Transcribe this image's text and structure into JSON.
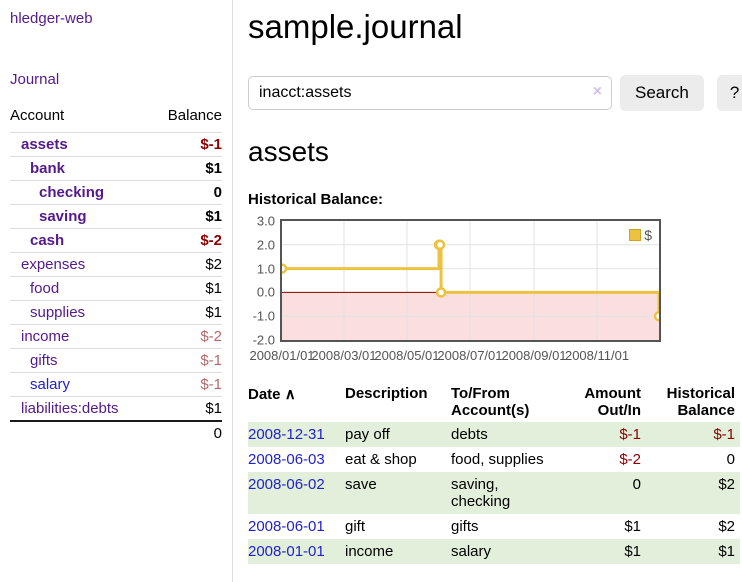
{
  "app": {
    "title": "hledger-web"
  },
  "sidebar": {
    "journal_link": "Journal",
    "accounts": {
      "account_header": "Account",
      "balance_header": "Balance",
      "rows": [
        {
          "name": "assets",
          "balance": "$-1",
          "level": 1,
          "bold": true,
          "neg": "strong",
          "link": "purple"
        },
        {
          "name": "bank",
          "balance": "$1",
          "level": 2,
          "bold": true,
          "neg": "none",
          "link": "purple"
        },
        {
          "name": "checking",
          "balance": "0",
          "level": 3,
          "bold": true,
          "neg": "none",
          "link": "purple"
        },
        {
          "name": "saving",
          "balance": "$1",
          "level": 3,
          "bold": true,
          "neg": "none",
          "link": "purple"
        },
        {
          "name": "cash",
          "balance": "$-2",
          "level": 2,
          "bold": true,
          "neg": "strong",
          "link": "purple"
        },
        {
          "name": "expenses",
          "balance": "$2",
          "level": 1,
          "bold": false,
          "neg": "none",
          "link": "purple"
        },
        {
          "name": "food",
          "balance": "$1",
          "level": 2,
          "bold": false,
          "neg": "none",
          "link": "purple"
        },
        {
          "name": "supplies",
          "balance": "$1",
          "level": 2,
          "bold": false,
          "neg": "none",
          "link": "purple"
        },
        {
          "name": "income",
          "balance": "$-2",
          "level": 1,
          "bold": false,
          "neg": "soft",
          "link": "purple"
        },
        {
          "name": "gifts",
          "balance": "$-1",
          "level": 2,
          "bold": false,
          "neg": "soft",
          "link": "purple"
        },
        {
          "name": "salary",
          "balance": "$-1",
          "level": 2,
          "bold": false,
          "neg": "soft",
          "link": "blue"
        },
        {
          "name": "liabilities:debts",
          "balance": "$1",
          "level": 1,
          "bold": false,
          "neg": "none",
          "link": "purple"
        }
      ],
      "total": "0"
    }
  },
  "main": {
    "title": "sample.journal",
    "search": {
      "value": "inacct:assets",
      "clear_icon": "×",
      "search_button": "Search",
      "help_button": "?"
    },
    "account_title": "assets",
    "chart_title": "Historical Balance:",
    "register": {
      "headers": {
        "date": "Date",
        "sort_icon": "∧",
        "description": "Description",
        "accounts": "To/From Account(s)",
        "amount": "Amount Out/In",
        "balance": "Historical Balance"
      },
      "rows": [
        {
          "date": "2008-12-31",
          "description": "pay off",
          "accounts": "debts",
          "amount": "$-1",
          "balance": "$-1",
          "amount_neg": true,
          "balance_neg": true,
          "shaded": true
        },
        {
          "date": "2008-06-03",
          "description": "eat & shop",
          "accounts": "food, supplies",
          "amount": "$-2",
          "balance": "0",
          "amount_neg": true,
          "balance_neg": false,
          "shaded": false
        },
        {
          "date": "2008-06-02",
          "description": "save",
          "accounts": "saving, checking",
          "amount": "0",
          "balance": "$2",
          "amount_neg": false,
          "balance_neg": false,
          "shaded": true
        },
        {
          "date": "2008-06-01",
          "description": "gift",
          "accounts": "gifts",
          "amount": "$1",
          "balance": "$2",
          "amount_neg": false,
          "balance_neg": false,
          "shaded": false
        },
        {
          "date": "2008-01-01",
          "description": "income",
          "accounts": "salary",
          "amount": "$1",
          "balance": "$1",
          "amount_neg": false,
          "balance_neg": false,
          "shaded": true
        }
      ]
    }
  },
  "colors": {
    "purple_link": "#551a8b",
    "blue_link": "#2222cc",
    "negative_strong": "#8b0000",
    "negative_soft": "#b56a6a",
    "row_shaded": "#e2efdb",
    "chart_line": "#edc240"
  },
  "chart_data": {
    "type": "line",
    "step": true,
    "title": "Historical Balance:",
    "series": [
      {
        "name": "$",
        "color": "#edc240",
        "points": [
          [
            "2008-01-01",
            1
          ],
          [
            "2008-06-01",
            2
          ],
          [
            "2008-06-02",
            2
          ],
          [
            "2008-06-03",
            0
          ],
          [
            "2008-12-31",
            -1
          ]
        ]
      }
    ],
    "x_ticks": [
      "2008/01/01",
      "2008/03/01",
      "2008/05/01",
      "2008/07/01",
      "2008/09/01",
      "2008/11/01"
    ],
    "y_ticks": [
      3.0,
      2.0,
      1.0,
      0.0,
      -1.0,
      -2.0
    ],
    "xlim": [
      "2008-01-01",
      "2008-12-31"
    ],
    "ylim": [
      -2,
      3
    ],
    "grid": true,
    "legend": {
      "label": "$",
      "position": "top-right"
    },
    "colors": {
      "line": "#edc240",
      "marker_fill": "#ffffff",
      "negative_region": "#fbdfdf",
      "zero_line": "#8b0000",
      "grid": "#e2e2e2",
      "axis_text": "#545454",
      "border": "#545454"
    }
  }
}
